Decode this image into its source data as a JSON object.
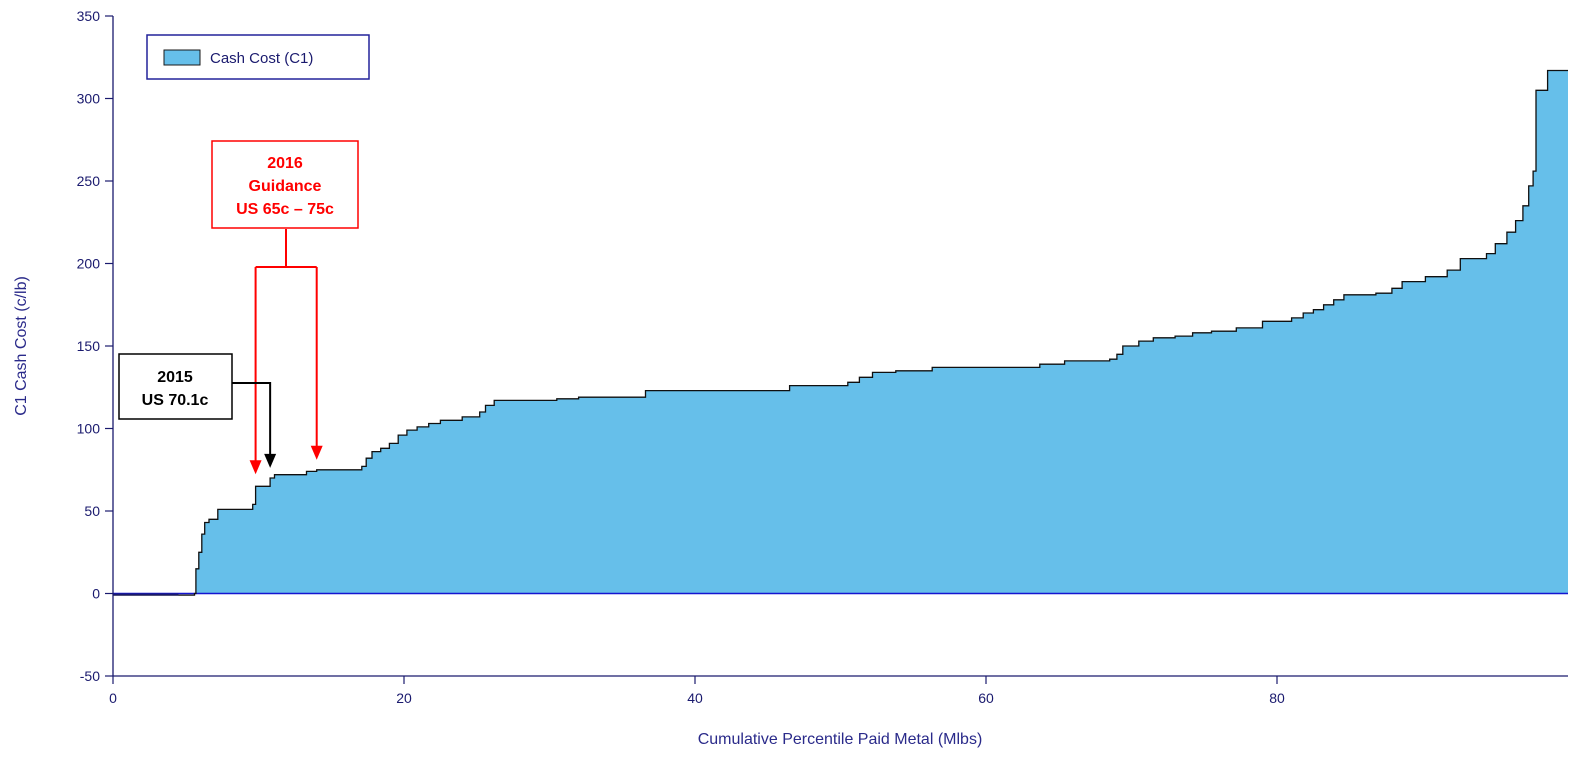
{
  "chart_data": {
    "type": "area",
    "xlabel": "Cumulative Percentile Paid Metal (Mlbs)",
    "ylabel": "C1 Cash Cost (c/lb)",
    "xlim": [
      0,
      100
    ],
    "ylim": [
      -50,
      350
    ],
    "x_ticks": [
      0,
      20,
      40,
      60,
      80
    ],
    "y_ticks": [
      -50,
      0,
      50,
      100,
      150,
      200,
      250,
      300,
      350
    ],
    "grid": false,
    "legend": {
      "placement": "top-left",
      "entries": [
        "Cash Cost (C1)"
      ]
    },
    "series": [
      {
        "name": "Cash Cost (C1)",
        "color": "#66bfea",
        "step_points": [
          [
            0,
            -1
          ],
          [
            4.5,
            -1
          ],
          [
            5.6,
            0
          ],
          [
            5.7,
            15
          ],
          [
            5.9,
            25
          ],
          [
            6.1,
            36
          ],
          [
            6.3,
            43
          ],
          [
            6.6,
            45
          ],
          [
            7.2,
            51
          ],
          [
            9.6,
            54
          ],
          [
            9.8,
            65
          ],
          [
            10.8,
            70
          ],
          [
            11.1,
            72
          ],
          [
            13.3,
            74
          ],
          [
            14.0,
            75
          ],
          [
            17.1,
            77
          ],
          [
            17.4,
            82
          ],
          [
            17.8,
            86
          ],
          [
            18.4,
            88
          ],
          [
            19.0,
            91
          ],
          [
            19.6,
            96
          ],
          [
            20.2,
            99
          ],
          [
            20.9,
            101
          ],
          [
            21.7,
            103
          ],
          [
            22.5,
            105
          ],
          [
            24.0,
            107
          ],
          [
            25.2,
            110
          ],
          [
            25.6,
            114
          ],
          [
            26.2,
            117
          ],
          [
            30.5,
            118
          ],
          [
            32.0,
            119
          ],
          [
            36.6,
            123
          ],
          [
            46.5,
            126
          ],
          [
            50.5,
            128
          ],
          [
            51.3,
            131
          ],
          [
            52.2,
            134
          ],
          [
            53.8,
            135
          ],
          [
            56.3,
            137
          ],
          [
            63.7,
            139
          ],
          [
            65.4,
            141
          ],
          [
            68.5,
            142
          ],
          [
            69.0,
            145
          ],
          [
            69.4,
            150
          ],
          [
            70.5,
            153
          ],
          [
            71.5,
            155
          ],
          [
            73.0,
            156
          ],
          [
            74.2,
            158
          ],
          [
            75.5,
            159
          ],
          [
            77.2,
            161
          ],
          [
            79.0,
            165
          ],
          [
            81.0,
            167
          ],
          [
            81.8,
            170
          ],
          [
            82.5,
            172
          ],
          [
            83.2,
            175
          ],
          [
            83.9,
            178
          ],
          [
            84.6,
            181
          ],
          [
            86.8,
            182
          ],
          [
            87.9,
            185
          ],
          [
            88.6,
            189
          ],
          [
            90.2,
            192
          ],
          [
            91.7,
            196
          ],
          [
            92.6,
            203
          ],
          [
            94.4,
            206
          ],
          [
            95.0,
            212
          ],
          [
            95.8,
            219
          ],
          [
            96.4,
            226
          ],
          [
            96.9,
            235
          ],
          [
            97.3,
            247
          ],
          [
            97.6,
            256
          ],
          [
            97.8,
            305
          ],
          [
            98.6,
            317
          ],
          [
            100,
            317
          ]
        ]
      }
    ],
    "annotations": [
      {
        "id": "guidance",
        "lines": [
          "2016",
          "Guidance",
          "US 65c – 75c"
        ],
        "color": "#ff0000",
        "arrows_at": [
          [
            9.8,
            65
          ],
          [
            14.0,
            75
          ]
        ]
      },
      {
        "id": "actual",
        "lines": [
          "2015",
          "US 70.1c"
        ],
        "color": "#000000",
        "arrows_at": [
          [
            10.8,
            70.1
          ]
        ]
      }
    ]
  }
}
